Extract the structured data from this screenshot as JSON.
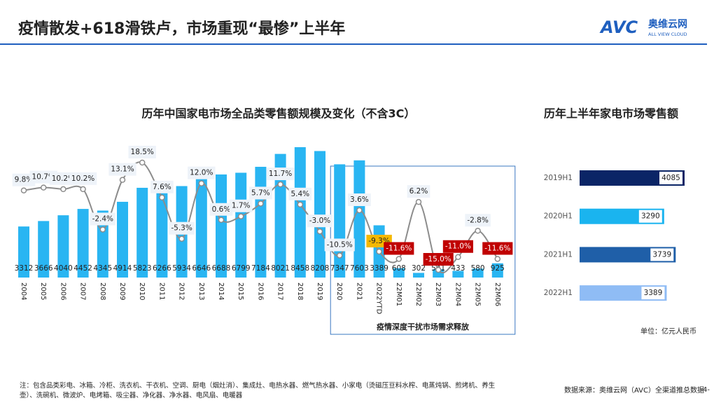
{
  "header": {
    "title": "疫情散发+618滑铁卢，市场重现“最惨”上半年",
    "logo": "AVC",
    "logo_cn": "奥维云网",
    "logo_en": "ALL VIEW CLOUD"
  },
  "footer": {
    "note": "注：包含品类彩电、冰箱、冷柜、洗衣机、干衣机、空调、厨电（烟灶消）、集成灶、电热水器、燃气热水器、小家电（烫磁压豆料水榨、电蒸炖锅、煎烤机、养生壶）、洗碗机、微波炉、电烤箱、吸尘器、净化器、净水器、电风扇、电暖器",
    "source": "数据来源：奥维云网（AVC）全渠道推总数据",
    "page": "-4-"
  },
  "chart_data": [
    {
      "type": "combo",
      "title": "历年中国家电市场全品类零售额规模及变化（不含3C）",
      "categories": [
        "2004",
        "2005",
        "2006",
        "2007",
        "2008",
        "2009",
        "2010",
        "2011",
        "2012",
        "2013",
        "2014",
        "2015",
        "2016",
        "2017",
        "2018",
        "2019",
        "2020",
        "2021",
        "2022YTD",
        "22M01",
        "22M02",
        "22M03",
        "22M04",
        "22M05",
        "22M06"
      ],
      "series": [
        {
          "type": "bar",
          "color": "#29b5f2",
          "values": [
            3312,
            3666,
            4040,
            4452,
            4345,
            4914,
            5823,
            6266,
            5934,
            6646,
            6688,
            6799,
            7184,
            8021,
            8458,
            8208,
            7347,
            7603,
            3389,
            608,
            302,
            541,
            433,
            580,
            925
          ]
        },
        {
          "type": "line",
          "color": "#8c8c8c",
          "values": [
            9.8,
            10.7,
            10.2,
            10.2,
            -2.4,
            13.1,
            18.5,
            7.6,
            -5.3,
            12.0,
            0.6,
            1.7,
            5.7,
            11.7,
            5.4,
            -3.0,
            -10.5,
            3.6,
            -9.3,
            -11.6,
            6.2,
            -15.0,
            -11.0,
            -2.8,
            -11.6
          ],
          "value_labels": [
            "9.8%",
            "10.7%",
            "10.2%",
            "10.2%",
            "-2.4%",
            "13.1%",
            "18.5%",
            "7.6%",
            "-5.3%",
            "12.0%",
            "0.6%",
            "1.7%",
            "5.7%",
            "11.7%",
            "5.4%",
            "-3.0%",
            "-10.5%",
            "3.6%",
            "-9.3%",
            "-11.6%",
            "6.2%",
            "-15.0%",
            "-11.0%",
            "-2.8%",
            "-11.6%"
          ],
          "label_colors": [
            "#eef3f9",
            "#eef3f9",
            "#eef3f9",
            "#eef3f9",
            "#eef3f9",
            "#eef3f9",
            "#eef3f9",
            "#eef3f9",
            "#eef3f9",
            "#eef3f9",
            "#eef3f9",
            "#eef3f9",
            "#eef3f9",
            "#eef3f9",
            "#eef3f9",
            "#eef3f9",
            "#eef3f9",
            "#eef3f9",
            "#f5b800",
            "#c00000",
            "#eef3f9",
            "#c00000",
            "#c00000",
            "#eef3f9",
            "#c00000"
          ]
        }
      ],
      "annotations": [
        {
          "text": "疫情深度干扰市场需求释放",
          "from": "2020",
          "to": "22M06"
        }
      ]
    },
    {
      "type": "hbar",
      "title": "历年上半年家电市场零售额",
      "categories": [
        "2019H1",
        "2020H1",
        "2021H1",
        "2022H1"
      ],
      "values": [
        4085,
        3290,
        3739,
        3389
      ],
      "colors": [
        "#0b2566",
        "#1ab4ef",
        "#1f5fa8",
        "#8fbcf5"
      ],
      "unit_note": "单位：亿元人民币"
    }
  ]
}
